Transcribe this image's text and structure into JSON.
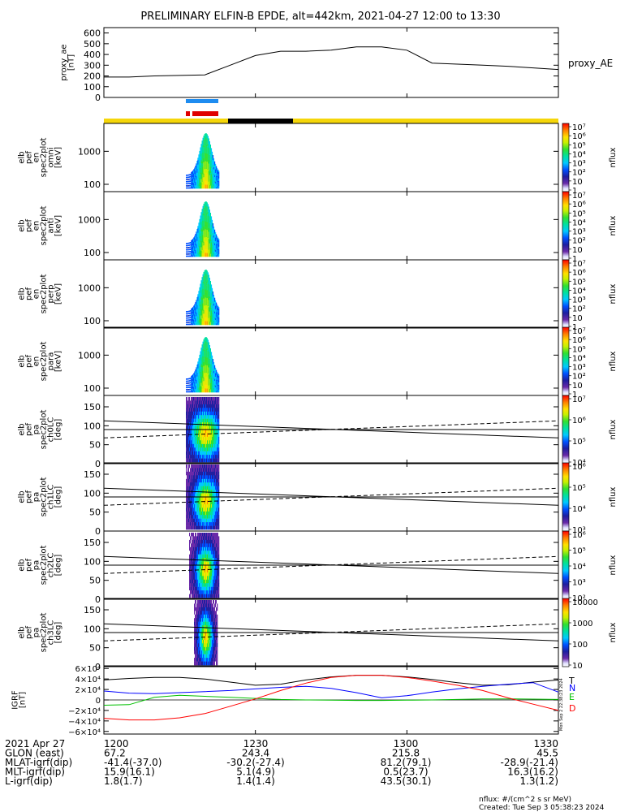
{
  "title": "PRELIMINARY ELFIN-B EPDE, alt=442km, 2021-04-27 12:00 to 13:30",
  "colors": {
    "blue_bar": "#1e8cf0",
    "red_bar": "#e00000",
    "yellow_bar": "#f5d60a",
    "black_bar": "#000000",
    "grf_T": "#000000",
    "grf_N": "#0000ff",
    "grf_E": "#00c000",
    "grf_D": "#ff0000"
  },
  "chart_data": [
    {
      "type": "line",
      "name": "proxy_ae",
      "ylabel_lines": [
        "proxy_ae",
        "[nT]"
      ],
      "right_label": "proxy_AE",
      "ylim": [
        0,
        650
      ],
      "yticks": [
        "0",
        "100",
        "200",
        "300",
        "400",
        "500",
        "600"
      ],
      "x": [
        0,
        5,
        10,
        15,
        20,
        25,
        30,
        35,
        40,
        45,
        50,
        55,
        60,
        65,
        70,
        75,
        80,
        85,
        90
      ],
      "y": [
        190,
        190,
        200,
        205,
        210,
        300,
        390,
        430,
        430,
        440,
        470,
        470,
        440,
        320,
        310,
        300,
        290,
        275,
        260
      ]
    },
    {
      "type": "heatmap",
      "name": "spec_omni",
      "ylabel_lines": [
        "elb",
        "pef",
        "en",
        "spec2plot",
        "omni",
        "[keV]"
      ],
      "yscale": "log",
      "ylim": [
        60,
        7000
      ],
      "yticks": [
        "100",
        "1000"
      ],
      "colorbar": {
        "label": "nflux",
        "scale": "log",
        "range": [
          1,
          10000000
        ],
        "ticks": [
          "1",
          "10",
          "10²",
          "10³",
          "10⁴",
          "10⁵",
          "10⁶",
          "10⁷"
        ]
      }
    },
    {
      "type": "heatmap",
      "name": "spec_anti",
      "ylabel_lines": [
        "elb",
        "pef",
        "en",
        "spec2plot",
        "anti",
        "[keV]"
      ],
      "yscale": "log",
      "ylim": [
        60,
        7000
      ],
      "yticks": [
        "100",
        "1000"
      ],
      "colorbar": {
        "label": "nflux",
        "scale": "log",
        "range": [
          1,
          10000000
        ],
        "ticks": [
          "1",
          "10",
          "10²",
          "10³",
          "10⁴",
          "10⁵",
          "10⁶",
          "10⁷"
        ]
      }
    },
    {
      "type": "heatmap",
      "name": "spec_perp",
      "ylabel_lines": [
        "elb",
        "pef",
        "en",
        "spec2plot",
        "perp",
        "[keV]"
      ],
      "yscale": "log",
      "ylim": [
        60,
        7000
      ],
      "yticks": [
        "100",
        "1000"
      ],
      "colorbar": {
        "label": "nflux",
        "scale": "log",
        "range": [
          1,
          10000000
        ],
        "ticks": [
          "1",
          "10",
          "10²",
          "10³",
          "10⁴",
          "10⁵",
          "10⁶",
          "10⁷"
        ]
      }
    },
    {
      "type": "heatmap",
      "name": "spec_para",
      "ylabel_lines": [
        "elb",
        "pef",
        "en",
        "spec2plot",
        "para",
        "[keV]"
      ],
      "yscale": "log",
      "ylim": [
        60,
        7000
      ],
      "yticks": [
        "100",
        "1000"
      ],
      "colorbar": {
        "label": "nflux",
        "scale": "log",
        "range": [
          1,
          10000000
        ],
        "ticks": [
          "1",
          "10",
          "10²",
          "10³",
          "10⁴",
          "10⁵",
          "10⁶",
          "10⁷"
        ]
      }
    },
    {
      "type": "heatmap",
      "name": "pa_ch0LC",
      "ylabel_lines": [
        "elb",
        "pef",
        "pa",
        "spec2plot",
        "ch0LC",
        "[deg]"
      ],
      "ylim": [
        0,
        180
      ],
      "yticks": [
        "0",
        "50",
        "100",
        "150"
      ],
      "colorbar": {
        "label": "nflux",
        "scale": "log",
        "range": [
          1000,
          10000000
        ],
        "ticks": [
          "10⁴",
          "10⁵",
          "10⁶",
          "10⁷"
        ]
      }
    },
    {
      "type": "heatmap",
      "name": "pa_ch1LC",
      "ylabel_lines": [
        "elb",
        "pef",
        "pa",
        "spec2plot",
        "ch1LC",
        "[deg]"
      ],
      "ylim": [
        0,
        180
      ],
      "yticks": [
        "0",
        "50",
        "100",
        "150"
      ],
      "colorbar": {
        "label": "nflux",
        "scale": "log",
        "range": [
          300,
          3000000
        ],
        "ticks": [
          "10³",
          "10⁴",
          "10⁵",
          "10⁶"
        ]
      }
    },
    {
      "type": "heatmap",
      "name": "pa_ch2LC",
      "ylabel_lines": [
        "elb",
        "pef",
        "pa",
        "spec2plot",
        "ch2LC",
        "[deg]"
      ],
      "ylim": [
        0,
        180
      ],
      "yticks": [
        "0",
        "50",
        "100",
        "150"
      ],
      "colorbar": {
        "label": "nflux",
        "scale": "log",
        "range": [
          100,
          1000000
        ],
        "ticks": [
          "10²",
          "10³",
          "10⁴",
          "10⁵",
          "10⁶"
        ]
      }
    },
    {
      "type": "heatmap",
      "name": "pa_ch3LC",
      "ylabel_lines": [
        "elb",
        "pef",
        "pa",
        "spec2plot",
        "ch3LC",
        "[deg]"
      ],
      "ylim": [
        0,
        180
      ],
      "yticks": [
        "0",
        "50",
        "100",
        "150"
      ],
      "colorbar": {
        "label": "nflux",
        "scale": "log",
        "range": [
          10,
          10000
        ],
        "ticks": [
          "10",
          "100",
          "1000",
          "10000"
        ]
      }
    },
    {
      "type": "line",
      "name": "IGRF",
      "ylabel_lines": [
        "IGRF",
        "[nT]"
      ],
      "ylim": [
        -65000,
        65000
      ],
      "yticks": [
        "−6×10⁴",
        "−4×10⁴",
        "−2×10⁴",
        "0",
        "2×10⁴",
        "4×10⁴",
        "6×10⁴"
      ],
      "series_labels": [
        "T",
        "N",
        "E",
        "D"
      ],
      "x": [
        0,
        5,
        10,
        15,
        20,
        25,
        30,
        35,
        40,
        45,
        50,
        55,
        60,
        65,
        70,
        75,
        80,
        85,
        90
      ],
      "series": [
        {
          "name": "T",
          "values": [
            38000,
            41000,
            43000,
            43000,
            40000,
            34000,
            28000,
            30000,
            38000,
            44000,
            47000,
            47000,
            44000,
            39000,
            33000,
            28000,
            29000,
            34000,
            38000
          ]
        },
        {
          "name": "N",
          "values": [
            17000,
            13000,
            12000,
            14000,
            16000,
            18000,
            21000,
            24000,
            26000,
            22000,
            14000,
            4000,
            8000,
            15000,
            21000,
            26000,
            30000,
            33000,
            15000
          ]
        },
        {
          "name": "E",
          "values": [
            -10000,
            -9000,
            5000,
            9000,
            7000,
            5000,
            3000,
            1000,
            0,
            -500,
            -1000,
            -1000,
            -500,
            0,
            1000,
            2000,
            2000,
            1500,
            1000
          ]
        },
        {
          "name": "D",
          "values": [
            -35000,
            -38000,
            -38000,
            -34000,
            -26000,
            -12000,
            2000,
            18000,
            32000,
            43000,
            47000,
            47000,
            43000,
            36000,
            28000,
            18000,
            4000,
            -8000,
            -20000
          ]
        }
      ]
    }
  ],
  "footer": {
    "rows": [
      {
        "label": "2021 Apr 27",
        "values": [
          "1200",
          "1230",
          "1300",
          "1330"
        ]
      },
      {
        "label": "GLON (east)",
        "values": [
          "67.2",
          "243.4",
          "215.8",
          "45.5"
        ]
      },
      {
        "label": "MLAT-igrf(dip)",
        "values": [
          "-41.4(-37.0)",
          "-30.2(-27.4)",
          "81.2(79.1)",
          "-28.9(-21.4)"
        ]
      },
      {
        "label": "MLT-igrf(dip)",
        "values": [
          "15.9(16.1)",
          "5.1(4.9)",
          "0.5(23.7)",
          "16.3(16.2)"
        ]
      },
      {
        "label": "L-igrf(dip)",
        "values": [
          "1.8(1.7)",
          "1.4(1.4)",
          "43.5(30.1)",
          "1.3(1.2)"
        ]
      }
    ],
    "units_note": "nflux: #/(cm^2 s sr MeV)",
    "created": "Created: Tue Sep  3 05:38:23 2024",
    "side_stamp": "Mon Sep  2 22:38:23 2024"
  }
}
